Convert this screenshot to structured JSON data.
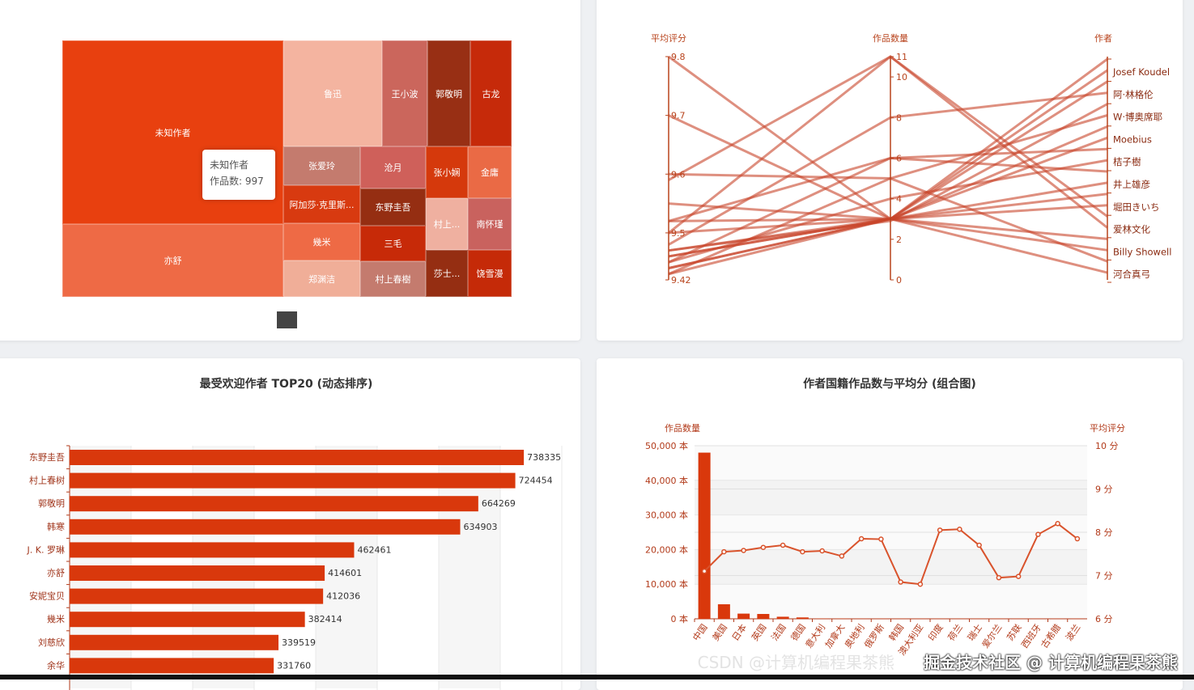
{
  "treemap": {
    "items": [
      {
        "name": "未知作者",
        "color": "#e8400f"
      },
      {
        "name": "亦舒",
        "color": "#ee6a45"
      },
      {
        "name": "鲁迅",
        "color": "#f4b4a0"
      },
      {
        "name": "王小波",
        "color": "#cb665c"
      },
      {
        "name": "郭敬明",
        "color": "#982f14"
      },
      {
        "name": "古龙",
        "color": "#c62a0a"
      },
      {
        "name": "张爱玲",
        "color": "#c47b6e"
      },
      {
        "name": "阿加莎·克里斯...",
        "color": "#d83a10"
      },
      {
        "name": "幾米",
        "color": "#ee6a45"
      },
      {
        "name": "郑渊洁",
        "color": "#f0ae98"
      },
      {
        "name": "沧月",
        "color": "#cf605a"
      },
      {
        "name": "东野圭吾",
        "color": "#952e12"
      },
      {
        "name": "三毛",
        "color": "#c72a08"
      },
      {
        "name": "村上春樹",
        "color": "#c47b6e"
      },
      {
        "name": "张小娴",
        "color": "#d5390c"
      },
      {
        "name": "金庸",
        "color": "#ea6a45"
      },
      {
        "name": "村上...",
        "color": "#efb0a0"
      },
      {
        "name": "南怀瑾",
        "color": "#c9625e"
      },
      {
        "name": "莎士...",
        "color": "#952e12"
      },
      {
        "name": "饶雪漫",
        "color": "#c52a08"
      }
    ],
    "tooltip": {
      "name": "未知作者",
      "label": "作品数: 997"
    }
  },
  "chart_data": [
    {
      "type": "parallel",
      "axes": [
        {
          "name": "平均评分",
          "min": 9.42,
          "max": 9.8,
          "ticks": [
            "9.8",
            "9.7",
            "9.6",
            "9.5",
            "9.42"
          ]
        },
        {
          "name": "作品数量",
          "min": 0,
          "max": 11,
          "ticks": [
            "11",
            "10",
            "8",
            "6",
            "4",
            "2",
            "0"
          ]
        },
        {
          "name": "作者",
          "labels": [
            "Josef Koudel",
            "阿·林格伦",
            "W·博奥席耶",
            "Moebius",
            "桔子樹",
            "井上雄彦",
            "堀田きいち",
            "爱林文化",
            "Billy Showell",
            "河合真弓"
          ]
        }
      ],
      "color": "#c8452a",
      "lines": [
        [
          9.8,
          3,
          9.5
        ],
        [
          9.7,
          3,
          8.5
        ],
        [
          9.59,
          11,
          7.5
        ],
        [
          9.6,
          5,
          9
        ],
        [
          9.55,
          3,
          0
        ],
        [
          9.52,
          3,
          0.5
        ],
        [
          9.52,
          6,
          4
        ],
        [
          9.46,
          3,
          1
        ],
        [
          9.47,
          2.9,
          2
        ],
        [
          9.48,
          8,
          1.5
        ],
        [
          9.44,
          3,
          3
        ],
        [
          9.43,
          5,
          2.5
        ],
        [
          9.43,
          3,
          3.5
        ],
        [
          9.45,
          6,
          5
        ],
        [
          9.5,
          11,
          7
        ],
        [
          9.5,
          3,
          6
        ],
        [
          9.46,
          3,
          5.5
        ],
        [
          9.44,
          3,
          6.5
        ],
        [
          9.47,
          3,
          8
        ],
        [
          9.45,
          4,
          4.5
        ]
      ]
    },
    {
      "type": "bar",
      "title": "最受欢迎作者 TOP20 (动态排序)",
      "orientation": "horizontal",
      "categories": [
        "东野圭吾",
        "村上春树",
        "郭敬明",
        "韩寒",
        "J. K. 罗琳",
        "亦舒",
        "安妮宝贝",
        "幾米",
        "刘慈欣",
        "余华"
      ],
      "values": [
        738335,
        724454,
        664269,
        634903,
        462461,
        414601,
        412036,
        382414,
        339519,
        331760
      ],
      "xlim": [
        0,
        800000
      ],
      "color": "#d9380c"
    },
    {
      "type": "bar+line",
      "title": "作者国籍作品数与平均分 (组合图)",
      "categories": [
        "中国",
        "美国",
        "日本",
        "英国",
        "法国",
        "德国",
        "意大利",
        "加拿大",
        "奥地利",
        "俄罗斯",
        "韩国",
        "澳大利亚",
        "印度",
        "荷兰",
        "瑞士",
        "爱尔兰",
        "苏联",
        "西班牙",
        "古希腊",
        "波兰"
      ],
      "series": [
        {
          "name": "作品数量",
          "type": "bar",
          "axis": "left",
          "values": [
            48000,
            4200,
            1500,
            1400,
            600,
            400,
            60,
            50,
            40,
            40,
            30,
            30,
            30,
            30,
            20,
            20,
            20,
            20,
            20,
            20
          ]
        },
        {
          "name": "平均评分",
          "type": "line",
          "axis": "right",
          "values": [
            7.1,
            7.55,
            7.58,
            7.65,
            7.7,
            7.55,
            7.57,
            7.45,
            7.85,
            7.84,
            6.85,
            6.8,
            8.05,
            8.07,
            7.7,
            6.95,
            6.98,
            7.95,
            8.2,
            7.85
          ]
        }
      ],
      "ylabel_left": "作品数量",
      "ylabel_right": "平均评分",
      "yticks_left": [
        "0 本",
        "10,000 本",
        "20,000 本",
        "30,000 本",
        "40,000 本",
        "50,000 本"
      ],
      "yticks_right": [
        "6 分",
        "7 分",
        "8 分",
        "9 分",
        "10 分"
      ],
      "ylim_left": [
        0,
        50000
      ],
      "ylim_right": [
        6,
        10
      ],
      "colors": {
        "bar": "#d9380c",
        "line": "#d9532c",
        "axis": "#b23a1a"
      }
    }
  ],
  "watermark": "掘金技术社区 @ 计算机编程果茶熊",
  "watermark2": "CSDN @计算机编程果茶熊"
}
